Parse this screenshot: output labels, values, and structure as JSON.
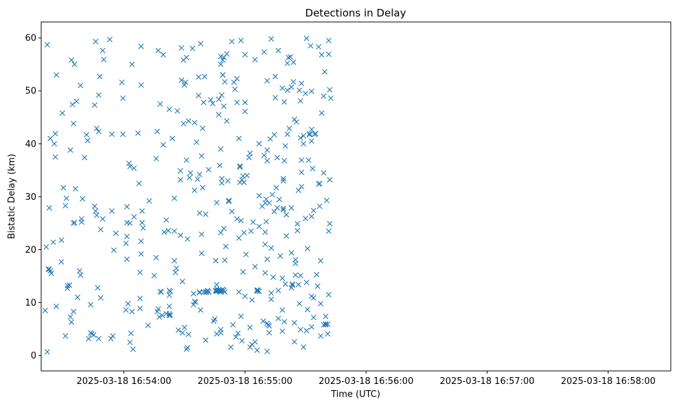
{
  "chart_data": {
    "type": "scatter",
    "title": "Detections in Delay",
    "xlabel": "Time (UTC)",
    "ylabel": "Bistatic Delay (km)",
    "x_ticks": [
      "2025-03-18 16:54:00",
      "2025-03-18 16:55:00",
      "2025-03-18 16:56:00",
      "2025-03-18 16:57:00",
      "2025-03-18 16:58:00"
    ],
    "y_ticks": [
      "0",
      "10",
      "20",
      "30",
      "40",
      "50",
      "60"
    ],
    "xlim": [
      "2025-03-18 16:53:19",
      "2025-03-18 16:58:31"
    ],
    "ylim": [
      -2.9,
      63
    ],
    "grid": false,
    "marker": "x",
    "color": "#1f77b4",
    "x_start": "2025-03-18 16:53:21",
    "points": [
      [
        0,
        8.5
      ],
      [
        0.5,
        20.5
      ],
      [
        1,
        0.7
      ],
      [
        1,
        58.7
      ],
      [
        1.5,
        16.3
      ],
      [
        2,
        16.3
      ],
      [
        2,
        27.9
      ],
      [
        2.5,
        16
      ],
      [
        2.5,
        41
      ],
      [
        3,
        15.5
      ],
      [
        4,
        21.4
      ],
      [
        4.5,
        40
      ],
      [
        5,
        41.9
      ],
      [
        5,
        37.5
      ],
      [
        5.5,
        53
      ],
      [
        5.5,
        9.3
      ],
      [
        8,
        21.8
      ],
      [
        8,
        17.7
      ],
      [
        8.5,
        45.8
      ],
      [
        9,
        31.7
      ],
      [
        10,
        3.7
      ],
      [
        10,
        28.3
      ],
      [
        10.5,
        29.7
      ],
      [
        11,
        12.7
      ],
      [
        11,
        13.2
      ],
      [
        12,
        13.3
      ],
      [
        12.5,
        38.8
      ],
      [
        12.5,
        7.3
      ],
      [
        13,
        55.8
      ],
      [
        13,
        6.3
      ],
      [
        13.5,
        47.4
      ],
      [
        14,
        43.8
      ],
      [
        14,
        8.3
      ],
      [
        14,
        25
      ],
      [
        14.5,
        55
      ],
      [
        14.5,
        25.1
      ],
      [
        15,
        31.5
      ],
      [
        15.5,
        48
      ],
      [
        16,
        11
      ],
      [
        17,
        16
      ],
      [
        17.5,
        51
      ],
      [
        17.5,
        15.2
      ],
      [
        18,
        25.2
      ],
      [
        18,
        25.8
      ],
      [
        18.5,
        29.6
      ],
      [
        19.5,
        37.4
      ],
      [
        20.5,
        41.7
      ],
      [
        21,
        40.6
      ],
      [
        21.5,
        3.2
      ],
      [
        22.5,
        9.6
      ],
      [
        22.5,
        4.3
      ],
      [
        23,
        4.1
      ],
      [
        24,
        3.9
      ],
      [
        24.5,
        47.3
      ],
      [
        24.5,
        28.2
      ],
      [
        25,
        27.3
      ],
      [
        25,
        59.3
      ],
      [
        25.5,
        42.9
      ],
      [
        25.5,
        26.5
      ],
      [
        26,
        12.8
      ],
      [
        26.5,
        3.2
      ],
      [
        26.5,
        42.3
      ],
      [
        26.5,
        49.2
      ],
      [
        27,
        52.7
      ],
      [
        27.5,
        10.9
      ],
      [
        27.5,
        23.8
      ],
      [
        28.5,
        57.6
      ],
      [
        28.5,
        25.8
      ],
      [
        29,
        55.9
      ],
      [
        32,
        59.7
      ],
      [
        32.5,
        3.2
      ],
      [
        33,
        41.8
      ],
      [
        33,
        27.3
      ],
      [
        33.5,
        3.7
      ],
      [
        34,
        19.9
      ],
      [
        35,
        23.1
      ],
      [
        38,
        51.6
      ],
      [
        38.5,
        48.6
      ],
      [
        38.5,
        41.8
      ],
      [
        40,
        21.2
      ],
      [
        40,
        8.6
      ],
      [
        40.5,
        28.1
      ],
      [
        40.5,
        22.5
      ],
      [
        40.5,
        18.2
      ],
      [
        40.5,
        25.1
      ],
      [
        41,
        9.8
      ],
      [
        41.5,
        36.3
      ],
      [
        42,
        2.5
      ],
      [
        42,
        35.7
      ],
      [
        42,
        25
      ],
      [
        42.5,
        4.2
      ],
      [
        43,
        55
      ],
      [
        43,
        8.3
      ],
      [
        43.5,
        1.2
      ],
      [
        44,
        26.2
      ],
      [
        44,
        35.4
      ],
      [
        46,
        42
      ],
      [
        46.5,
        32.5
      ],
      [
        47,
        10.8
      ],
      [
        47,
        8.9
      ],
      [
        47,
        15.7
      ],
      [
        47.5,
        58.4
      ],
      [
        47.5,
        51.1
      ],
      [
        47.5,
        19.2
      ],
      [
        47.5,
        21.6
      ],
      [
        48,
        25.1
      ],
      [
        48,
        27.3
      ],
      [
        48.5,
        24.1
      ],
      [
        51,
        5.7
      ],
      [
        51.5,
        29.2
      ],
      [
        54,
        15.1
      ],
      [
        55,
        37.2
      ],
      [
        55,
        18.5
      ],
      [
        55.5,
        8.3
      ],
      [
        55.5,
        42.3
      ],
      [
        56,
        57.6
      ],
      [
        56,
        8.8
      ],
      [
        56.5,
        7.3
      ],
      [
        57,
        12.1
      ],
      [
        57,
        47.5
      ],
      [
        57.5,
        12
      ],
      [
        58,
        7.6
      ],
      [
        58.5,
        39.8
      ],
      [
        58.5,
        56.8
      ],
      [
        59,
        23.3
      ],
      [
        60,
        7.9
      ],
      [
        60,
        25.6
      ],
      [
        61,
        23.6
      ],
      [
        61.5,
        7.9
      ],
      [
        61.5,
        12.3
      ],
      [
        61.5,
        11.4
      ],
      [
        61.5,
        9.3
      ],
      [
        61.5,
        7.6
      ],
      [
        61.5,
        46.5
      ],
      [
        62,
        12.1
      ],
      [
        62,
        7.6
      ],
      [
        63,
        41
      ],
      [
        64,
        17.9
      ],
      [
        64,
        29.7
      ],
      [
        64,
        23.5
      ],
      [
        64.5,
        15.7
      ],
      [
        65,
        16.5
      ],
      [
        65.5,
        46.2
      ],
      [
        66,
        4.8
      ],
      [
        67,
        33.2
      ],
      [
        67,
        34.9
      ],
      [
        67,
        22.7
      ],
      [
        67.5,
        58.1
      ],
      [
        67.5,
        52
      ],
      [
        68,
        4.3
      ],
      [
        68,
        14
      ],
      [
        68.5,
        43.8
      ],
      [
        68.5,
        55.8
      ],
      [
        69,
        5.3
      ],
      [
        69,
        51.1
      ],
      [
        69.5,
        51.6
      ],
      [
        70,
        56.3
      ],
      [
        70,
        1.2
      ],
      [
        70,
        36.9
      ],
      [
        70.5,
        22
      ],
      [
        70.5,
        1.5
      ],
      [
        71,
        44.3
      ],
      [
        71,
        4
      ],
      [
        71.5,
        33.6
      ],
      [
        72,
        34.5
      ],
      [
        73,
        58
      ],
      [
        73.5,
        11.7
      ],
      [
        73.5,
        9.6
      ],
      [
        74,
        44
      ],
      [
        74,
        10.2
      ],
      [
        74,
        31.2
      ],
      [
        74.5,
        10.1
      ],
      [
        75,
        40.3
      ],
      [
        75.5,
        33.3
      ],
      [
        76,
        52.6
      ],
      [
        76,
        49.1
      ],
      [
        76.5,
        26.9
      ],
      [
        76.5,
        34.2
      ],
      [
        76.5,
        11.9
      ],
      [
        76.5,
        12
      ],
      [
        77,
        58.9
      ],
      [
        77,
        8.6
      ],
      [
        77.5,
        37.7
      ],
      [
        77.5,
        22.9
      ],
      [
        77.5,
        19.3
      ],
      [
        78,
        42.9
      ],
      [
        78,
        31.7
      ],
      [
        78.5,
        12
      ],
      [
        78.5,
        47.8
      ],
      [
        79,
        52.7
      ],
      [
        79.5,
        12
      ],
      [
        79.5,
        2.9
      ],
      [
        79.5,
        26.7
      ],
      [
        80,
        12
      ],
      [
        80.5,
        12.2
      ],
      [
        80.5,
        12.3
      ],
      [
        81,
        35.1
      ],
      [
        81,
        12
      ],
      [
        81,
        12
      ],
      [
        82,
        48.3
      ],
      [
        83,
        47.6
      ],
      [
        83.5,
        6.5
      ],
      [
        84,
        6.9
      ],
      [
        84.5,
        12.2
      ],
      [
        84.5,
        12.3
      ],
      [
        84.5,
        17.9
      ],
      [
        85,
        12.6
      ],
      [
        85,
        12.2
      ],
      [
        85,
        13.4
      ],
      [
        85,
        28.9
      ],
      [
        85,
        4.1
      ],
      [
        85.5,
        12.2
      ],
      [
        86,
        48.4
      ],
      [
        86,
        45.5
      ],
      [
        86,
        12.3
      ],
      [
        86.5,
        12.2
      ],
      [
        86.5,
        35.9
      ],
      [
        86.5,
        12.1
      ],
      [
        87,
        12.3
      ],
      [
        87,
        39
      ],
      [
        87,
        4.9
      ],
      [
        87,
        23.2
      ],
      [
        87,
        4.3
      ],
      [
        87,
        12
      ],
      [
        87,
        55
      ],
      [
        87,
        56.5
      ],
      [
        87.5,
        12.3
      ],
      [
        87.5,
        49.2
      ],
      [
        87.5,
        32.6
      ],
      [
        87.5,
        33.4
      ],
      [
        88,
        55.8
      ],
      [
        88,
        12.5
      ],
      [
        88,
        53
      ],
      [
        88,
        53
      ],
      [
        88.5,
        12.3
      ],
      [
        88.5,
        47.1
      ],
      [
        88.5,
        24
      ],
      [
        88.5,
        56.3
      ],
      [
        89,
        12
      ],
      [
        89,
        18
      ],
      [
        89,
        51.7
      ],
      [
        89.5,
        20.6
      ],
      [
        90,
        57
      ],
      [
        90,
        44.3
      ],
      [
        90.5,
        33
      ],
      [
        91,
        29.3
      ],
      [
        91,
        29.1
      ],
      [
        92,
        1.6
      ],
      [
        92.5,
        59.3
      ],
      [
        92.5,
        27.2
      ],
      [
        93,
        5.8
      ],
      [
        93.5,
        51.6
      ],
      [
        94,
        50.3
      ],
      [
        94.5,
        3.5
      ],
      [
        95,
        25.8
      ],
      [
        95,
        52.3
      ],
      [
        95,
        47.8
      ],
      [
        95.5,
        4.2
      ],
      [
        96,
        41
      ],
      [
        96,
        22.2
      ],
      [
        96,
        12
      ],
      [
        96.5,
        35.8
      ],
      [
        96.5,
        32.7
      ],
      [
        96.5,
        35.6
      ],
      [
        97,
        59.5
      ],
      [
        97,
        25.5
      ],
      [
        97,
        7.4
      ],
      [
        97.5,
        33.2
      ],
      [
        97.5,
        2.8
      ],
      [
        98,
        15.8
      ],
      [
        98,
        33.9
      ],
      [
        98.5,
        23.2
      ],
      [
        98.5,
        32.7
      ],
      [
        99,
        11.2
      ],
      [
        99,
        56.8
      ],
      [
        99,
        46.1
      ],
      [
        99,
        47.8
      ],
      [
        99.5,
        19.1
      ],
      [
        100,
        34
      ],
      [
        101,
        37.4
      ],
      [
        101.5,
        38.2
      ],
      [
        101.5,
        5.3
      ],
      [
        101.5,
        1.6
      ],
      [
        102,
        23.5
      ],
      [
        102.5,
        2.1
      ],
      [
        102.5,
        10.5
      ],
      [
        103,
        25.2
      ],
      [
        104,
        2.6
      ],
      [
        104,
        16.8
      ],
      [
        104,
        55.9
      ],
      [
        105,
        1
      ],
      [
        105,
        12.2
      ],
      [
        105,
        12.4
      ],
      [
        105,
        12.2
      ],
      [
        105.5,
        12.3
      ],
      [
        106,
        24.4
      ],
      [
        106,
        40
      ],
      [
        106,
        30.2
      ],
      [
        106,
        12.1
      ],
      [
        107.5,
        28.2
      ],
      [
        108,
        6.5
      ],
      [
        108.5,
        57.3
      ],
      [
        108.5,
        37.8
      ],
      [
        109,
        21
      ],
      [
        109,
        15.6
      ],
      [
        109,
        23.3
      ],
      [
        109,
        28.8
      ],
      [
        109.5,
        29.5
      ],
      [
        109.5,
        25.3
      ],
      [
        110,
        6.1
      ],
      [
        110,
        51.9
      ],
      [
        110,
        36.8
      ],
      [
        110,
        38.8
      ],
      [
        110,
        18.2
      ],
      [
        110,
        0.8
      ],
      [
        110.5,
        5.8
      ],
      [
        111,
        4.3
      ],
      [
        111,
        28.8
      ],
      [
        111,
        5.6
      ],
      [
        111.5,
        40.9
      ],
      [
        112,
        10.6
      ],
      [
        112,
        11.8
      ],
      [
        112,
        20.3
      ],
      [
        112,
        59.8
      ],
      [
        112.5,
        30.4
      ],
      [
        113,
        14.8
      ],
      [
        113.5,
        27.2
      ],
      [
        113.5,
        41.7
      ],
      [
        114,
        48.7
      ],
      [
        114,
        52.7
      ],
      [
        114.5,
        31.7
      ],
      [
        115,
        27.9
      ],
      [
        115,
        37.4
      ],
      [
        115.5,
        12.3
      ],
      [
        115.5,
        57.6
      ],
      [
        115.5,
        7
      ],
      [
        116,
        29.5
      ],
      [
        116.5,
        18.8
      ],
      [
        117.5,
        4.6
      ],
      [
        117.5,
        50.5
      ],
      [
        117.5,
        14.6
      ],
      [
        117.5,
        8.6
      ],
      [
        118,
        27.5
      ],
      [
        118,
        27.8
      ],
      [
        118,
        33.4
      ],
      [
        118,
        33
      ],
      [
        118.5,
        6.4
      ],
      [
        118.5,
        36.8
      ],
      [
        118.5,
        47.9
      ],
      [
        119,
        39.6
      ],
      [
        119,
        13.5
      ],
      [
        119.5,
        26.6
      ],
      [
        119.5,
        22.6
      ],
      [
        120,
        50.1
      ],
      [
        120,
        55.2
      ],
      [
        120,
        41.8
      ],
      [
        120.5,
        56.3
      ],
      [
        121,
        42.9
      ],
      [
        121.5,
        56.4
      ],
      [
        122,
        50.7
      ],
      [
        122,
        19.4
      ],
      [
        122,
        27.9
      ],
      [
        122,
        12.8
      ],
      [
        122.5,
        13.3
      ],
      [
        122.5,
        13.5
      ],
      [
        123,
        55.4
      ],
      [
        123,
        51.7
      ],
      [
        123.5,
        2.6
      ],
      [
        123.5,
        44.6
      ],
      [
        123.5,
        6.2
      ],
      [
        124,
        17.4
      ],
      [
        124,
        15.2
      ],
      [
        124,
        18.1
      ],
      [
        124.5,
        44.1
      ],
      [
        125,
        24.9
      ],
      [
        125,
        23.6
      ],
      [
        125.5,
        13.4
      ],
      [
        125.5,
        31.2
      ],
      [
        126,
        50.1
      ],
      [
        126,
        9.8
      ],
      [
        126.5,
        41.1
      ],
      [
        126.5,
        4.9
      ],
      [
        126.5,
        15.1
      ],
      [
        126.5,
        48.1
      ],
      [
        127,
        31.9
      ],
      [
        127,
        36.9
      ],
      [
        127,
        34.6
      ],
      [
        127,
        51.4
      ],
      [
        128,
        1.6
      ],
      [
        128,
        41.5
      ],
      [
        128,
        40
      ],
      [
        129,
        49.5
      ],
      [
        129,
        25.9
      ],
      [
        129.5,
        4.7
      ],
      [
        129.5,
        13.8
      ],
      [
        129.5,
        59.9
      ],
      [
        130,
        20.2
      ],
      [
        130,
        8.7
      ],
      [
        130.5,
        36.9
      ],
      [
        131,
        41.7
      ],
      [
        131,
        41.9
      ],
      [
        131.5,
        58.5
      ],
      [
        132,
        42.7
      ],
      [
        132,
        11.2
      ],
      [
        132,
        26.3
      ],
      [
        132,
        40.5
      ],
      [
        132,
        5.4
      ],
      [
        132,
        49.9
      ],
      [
        132.5,
        35.3
      ],
      [
        133,
        27.4
      ],
      [
        133,
        10.9
      ],
      [
        133,
        7.2
      ],
      [
        133.5,
        41.8
      ],
      [
        134,
        41.9
      ],
      [
        134.5,
        15.3
      ],
      [
        135,
        13.1
      ],
      [
        135.5,
        58.3
      ],
      [
        135.5,
        32.4
      ],
      [
        136,
        32.5
      ],
      [
        136,
        28.2
      ],
      [
        136.5,
        9.8
      ],
      [
        136.5,
        17.9
      ],
      [
        136.5,
        3.7
      ],
      [
        137,
        45.8
      ],
      [
        137,
        56.8
      ],
      [
        138,
        5.8
      ],
      [
        138,
        49
      ],
      [
        138,
        34.5
      ],
      [
        138.5,
        53.6
      ],
      [
        139,
        7.4
      ],
      [
        139,
        6
      ],
      [
        139,
        5.8
      ],
      [
        139.5,
        29.3
      ],
      [
        140,
        4.1
      ],
      [
        140,
        5.9
      ],
      [
        140.5,
        23.5
      ],
      [
        140.5,
        11.5
      ],
      [
        140.5,
        59.5
      ],
      [
        140.5,
        56.9
      ],
      [
        141,
        33.2
      ],
      [
        141,
        50.2
      ],
      [
        141,
        24.9
      ],
      [
        141.5,
        48.6
      ]
    ]
  }
}
